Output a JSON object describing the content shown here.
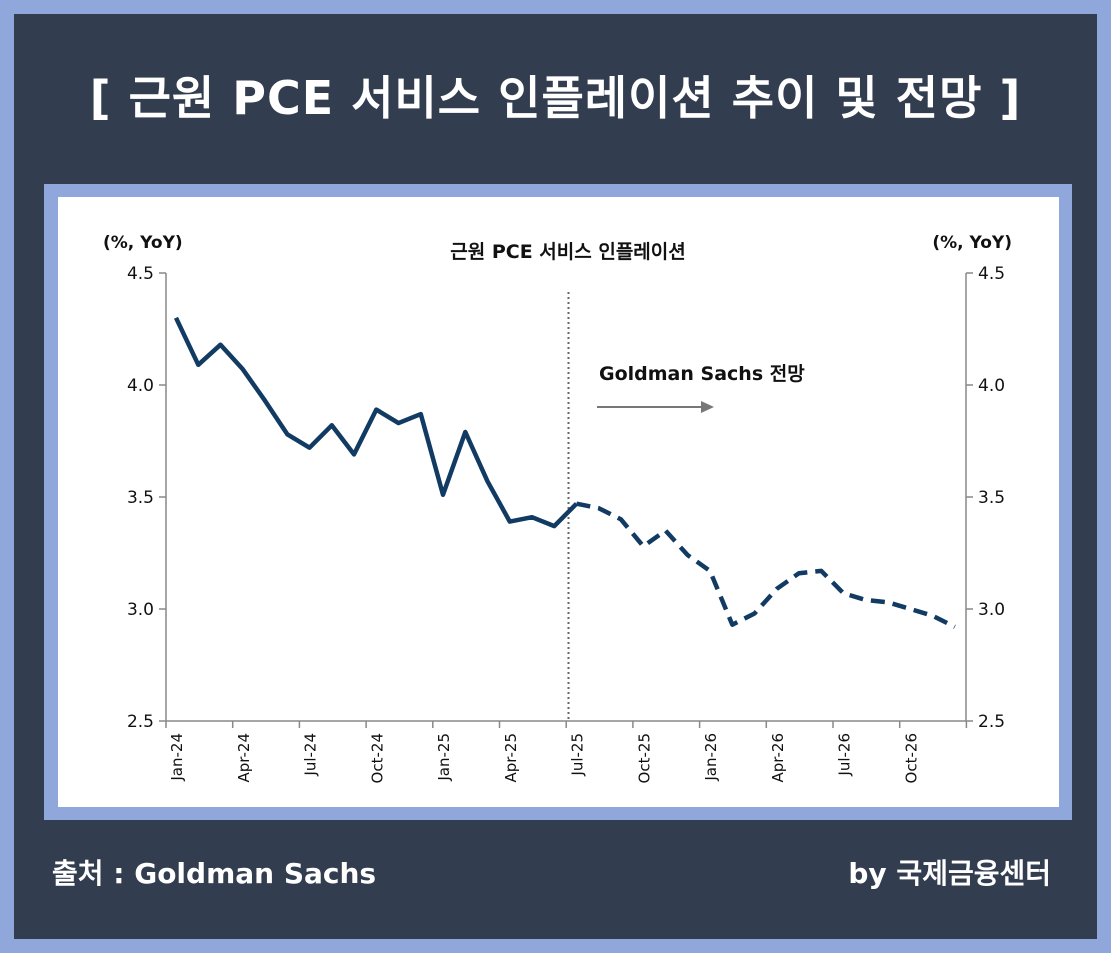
{
  "header": {
    "title": "[ 근원 PCE 서비스 인플레이션 추이 및 전망 ]"
  },
  "footer": {
    "source": "출처 :  Goldman Sachs",
    "credit": "by 국제금융센터"
  },
  "colors": {
    "background_frame": "#8fa7db",
    "panel": "#333d50",
    "series_line": "#123b63",
    "axis": "#888888"
  },
  "chart_data": {
    "type": "line",
    "title": "근원 PCE 서비스 인플레이션",
    "ylabel_left": "(%, YoY)",
    "ylabel_right": "(%, YoY)",
    "ylim": [
      2.5,
      4.5
    ],
    "yticks": [
      "2.5",
      "3.0",
      "3.5",
      "4.0",
      "4.5"
    ],
    "xtick_labels": [
      "Jan-24",
      "Apr-24",
      "Jul-24",
      "Oct-24",
      "Jan-25",
      "Apr-25",
      "Jul-25",
      "Oct-25",
      "Jan-26",
      "Apr-26",
      "Jul-26",
      "Oct-26"
    ],
    "annotation": {
      "text": "Goldman Sachs 전망",
      "arrow": "right"
    },
    "forecast_start": "Jul-25",
    "series": [
      {
        "style": "solid",
        "x": [
          "Jan-24",
          "Feb-24",
          "Mar-24",
          "Apr-24",
          "May-24",
          "Jun-24",
          "Jul-24",
          "Aug-24",
          "Sep-24",
          "Oct-24",
          "Nov-24",
          "Dec-24",
          "Jan-25",
          "Feb-25",
          "Mar-25",
          "Apr-25",
          "May-25",
          "Jun-25",
          "Jul-25"
        ],
        "values": [
          4.3,
          4.09,
          4.18,
          4.07,
          3.93,
          3.78,
          3.72,
          3.82,
          3.69,
          3.89,
          3.83,
          3.87,
          3.51,
          3.79,
          3.57,
          3.39,
          3.41,
          3.37,
          3.47
        ]
      },
      {
        "style": "dashed",
        "x": [
          "Jul-25",
          "Aug-25",
          "Sep-25",
          "Oct-25",
          "Nov-25",
          "Dec-25",
          "Jan-26",
          "Feb-26",
          "Mar-26",
          "Apr-26",
          "May-26",
          "Jun-26",
          "Jul-26",
          "Aug-26",
          "Sep-26",
          "Oct-26",
          "Nov-26",
          "Dec-26"
        ],
        "values": [
          3.47,
          3.45,
          3.4,
          3.28,
          3.35,
          3.24,
          3.17,
          2.93,
          2.98,
          3.09,
          3.16,
          3.17,
          3.07,
          3.04,
          3.03,
          3.0,
          2.97,
          2.92
        ]
      }
    ]
  }
}
